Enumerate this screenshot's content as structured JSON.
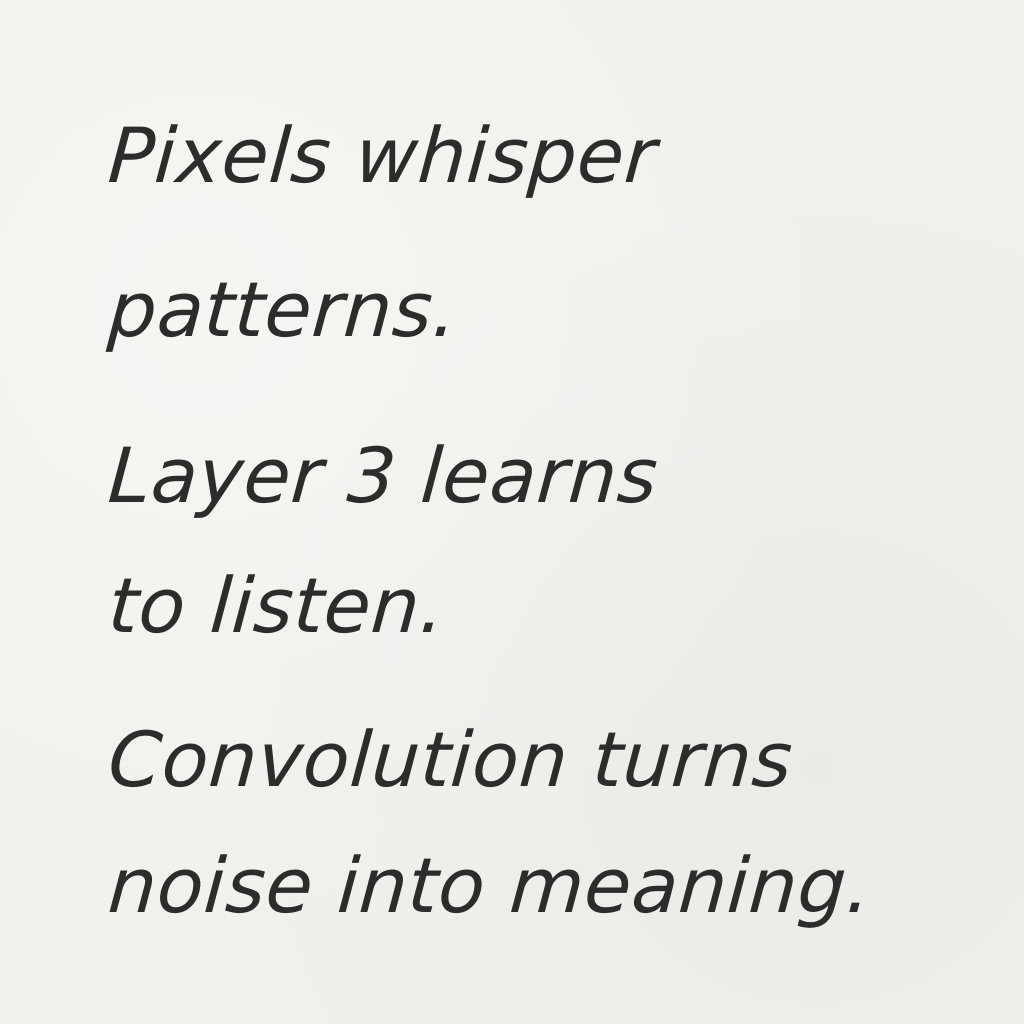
{
  "note": {
    "stanzas": [
      {
        "lines": [
          "Pixels whisper",
          "patterns."
        ]
      },
      {
        "lines": [
          "Layer 3 learns",
          "to listen."
        ]
      },
      {
        "lines": [
          "Convolution turns",
          "noise into meaning."
        ]
      }
    ]
  }
}
